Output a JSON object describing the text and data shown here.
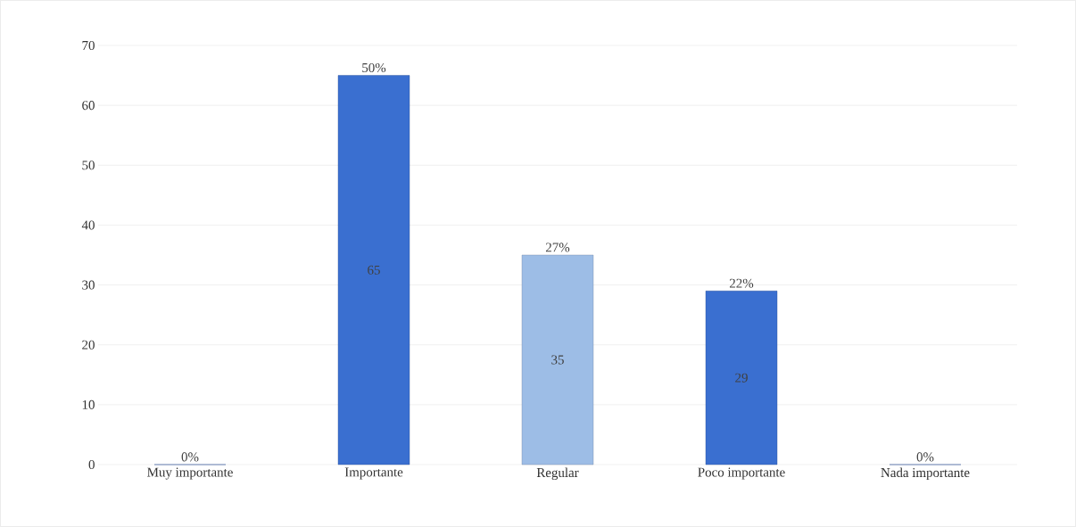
{
  "chart_data": {
    "type": "bar",
    "categories": [
      "Muy importante",
      "Importante",
      "Regular",
      "Poco importante",
      "Nada importante"
    ],
    "values": [
      0,
      65,
      35,
      29,
      0
    ],
    "colors": [
      "#3a6fd0",
      "#3a6fd0",
      "#9dbde6",
      "#3a6fd0",
      "#3a6fd0"
    ],
    "value_labels": [
      null,
      "65",
      "35",
      "29",
      null
    ],
    "annotations": [
      {
        "text": "0%",
        "x": "Muy importante",
        "y": 0
      },
      {
        "text": "50%",
        "x": "Importante",
        "y": 65
      },
      {
        "text": "27%",
        "x": "Regular",
        "y": 35
      },
      {
        "text": "22%",
        "x": "Poco importante",
        "y": 29
      },
      {
        "text": "0%",
        "x": "Nada importante",
        "y": 0
      }
    ],
    "ylim": [
      0,
      70
    ],
    "yticks": [
      0,
      10,
      20,
      30,
      40,
      50,
      60,
      70
    ],
    "grid": "y"
  }
}
